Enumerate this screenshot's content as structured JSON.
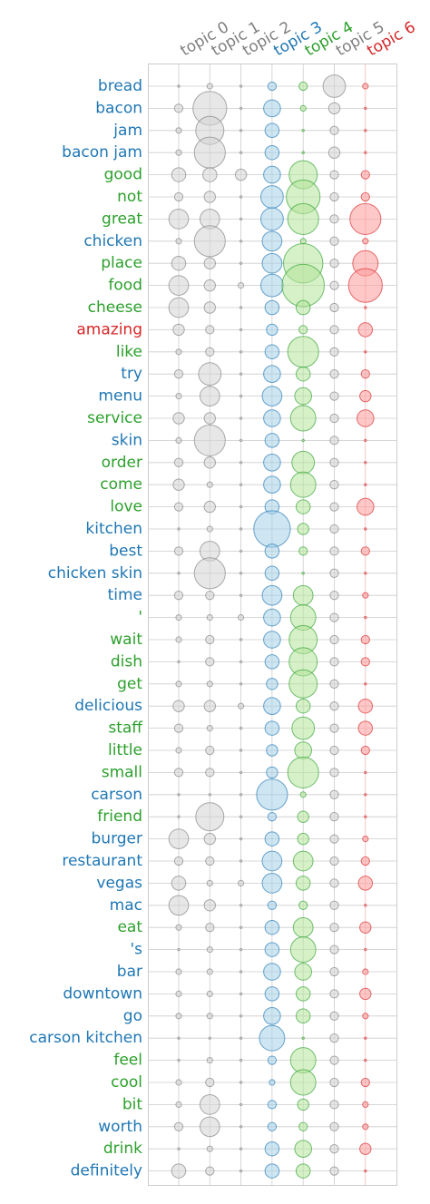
{
  "chart_data": {
    "type": "scatter",
    "title": "",
    "xlabel": "",
    "ylabel": "",
    "grid": true,
    "colors": {
      "gray": "#7f7f7f",
      "blue": "#1f77b4",
      "green": "#2ca02c",
      "red": "#d62728",
      "gray_fill": "#d3d3d3",
      "blue_fill": "#a6cfe8",
      "green_fill": "#b5e39a",
      "red_fill": "#ff9a9a",
      "grid": "#cccccc"
    },
    "topics": [
      {
        "label": "topic 0",
        "color": "gray"
      },
      {
        "label": "topic 1",
        "color": "gray"
      },
      {
        "label": "topic 2",
        "color": "gray"
      },
      {
        "label": "topic 3",
        "color": "blue"
      },
      {
        "label": "topic 4",
        "color": "green"
      },
      {
        "label": "topic 5",
        "color": "gray"
      },
      {
        "label": "topic 6",
        "color": "red"
      }
    ],
    "terms": [
      {
        "label": "bread",
        "color": "blue",
        "values": [
          1,
          2,
          1,
          3,
          3,
          8,
          2
        ]
      },
      {
        "label": "bacon",
        "color": "blue",
        "values": [
          3,
          12,
          1,
          6,
          2,
          4,
          1
        ]
      },
      {
        "label": "jam",
        "color": "blue",
        "values": [
          2,
          10,
          1,
          5,
          1,
          3,
          1
        ]
      },
      {
        "label": "bacon jam",
        "color": "blue",
        "values": [
          2,
          11,
          1,
          5,
          1,
          4,
          1
        ]
      },
      {
        "label": "good",
        "color": "green",
        "values": [
          5,
          5,
          4,
          6,
          10,
          3,
          3
        ]
      },
      {
        "label": "not",
        "color": "green",
        "values": [
          3,
          4,
          1,
          8,
          12,
          3,
          3
        ]
      },
      {
        "label": "great",
        "color": "green",
        "values": [
          7,
          7,
          1,
          8,
          11,
          3,
          11
        ]
      },
      {
        "label": "chicken",
        "color": "blue",
        "values": [
          2,
          11,
          1,
          7,
          2,
          3,
          2
        ]
      },
      {
        "label": "place",
        "color": "green",
        "values": [
          5,
          4,
          1,
          7,
          14,
          3,
          9
        ]
      },
      {
        "label": "food",
        "color": "green",
        "values": [
          7,
          4,
          2,
          8,
          15,
          3,
          12
        ]
      },
      {
        "label": "cheese",
        "color": "green",
        "values": [
          7,
          4,
          1,
          5,
          5,
          3,
          1
        ]
      },
      {
        "label": "amazing",
        "color": "red",
        "values": [
          4,
          3,
          1,
          4,
          3,
          3,
          5
        ]
      },
      {
        "label": "like",
        "color": "green",
        "values": [
          2,
          3,
          1,
          5,
          11,
          3,
          1
        ]
      },
      {
        "label": "try",
        "color": "blue",
        "values": [
          3,
          8,
          1,
          6,
          5,
          3,
          3
        ]
      },
      {
        "label": "menu",
        "color": "blue",
        "values": [
          2,
          7,
          1,
          7,
          6,
          3,
          4
        ]
      },
      {
        "label": "service",
        "color": "green",
        "values": [
          4,
          4,
          1,
          6,
          9,
          3,
          6
        ]
      },
      {
        "label": "skin",
        "color": "blue",
        "values": [
          2,
          11,
          1,
          5,
          1,
          3,
          1
        ]
      },
      {
        "label": "order",
        "color": "green",
        "values": [
          3,
          4,
          1,
          6,
          8,
          3,
          1
        ]
      },
      {
        "label": "come",
        "color": "green",
        "values": [
          4,
          2,
          1,
          6,
          9,
          3,
          1
        ]
      },
      {
        "label": "love",
        "color": "green",
        "values": [
          3,
          4,
          1,
          5,
          5,
          3,
          6
        ]
      },
      {
        "label": "kitchen",
        "color": "blue",
        "values": [
          1,
          2,
          1,
          13,
          4,
          3,
          1
        ]
      },
      {
        "label": "best",
        "color": "blue",
        "values": [
          3,
          7,
          1,
          5,
          3,
          3,
          3
        ]
      },
      {
        "label": "chicken skin",
        "color": "blue",
        "values": [
          1,
          11,
          1,
          5,
          1,
          3,
          1
        ]
      },
      {
        "label": "time",
        "color": "blue",
        "values": [
          3,
          3,
          1,
          7,
          7,
          3,
          2
        ]
      },
      {
        "label": "'",
        "color": "green",
        "values": [
          2,
          2,
          2,
          6,
          9,
          3,
          1
        ]
      },
      {
        "label": "wait",
        "color": "green",
        "values": [
          2,
          3,
          1,
          6,
          10,
          3,
          3
        ]
      },
      {
        "label": "dish",
        "color": "green",
        "values": [
          1,
          3,
          1,
          5,
          10,
          3,
          3
        ]
      },
      {
        "label": "get",
        "color": "green",
        "values": [
          2,
          2,
          1,
          4,
          10,
          3,
          1
        ]
      },
      {
        "label": "delicious",
        "color": "blue",
        "values": [
          4,
          4,
          2,
          6,
          5,
          3,
          5
        ]
      },
      {
        "label": "staff",
        "color": "green",
        "values": [
          3,
          2,
          1,
          5,
          8,
          3,
          5
        ]
      },
      {
        "label": "little",
        "color": "green",
        "values": [
          2,
          3,
          1,
          4,
          6,
          3,
          3
        ]
      },
      {
        "label": "small",
        "color": "green",
        "values": [
          3,
          3,
          1,
          4,
          11,
          3,
          1
        ]
      },
      {
        "label": "carson",
        "color": "blue",
        "values": [
          1,
          1,
          1,
          11,
          2,
          3,
          1
        ]
      },
      {
        "label": "friend",
        "color": "green",
        "values": [
          1,
          10,
          1,
          3,
          4,
          3,
          1
        ]
      },
      {
        "label": "burger",
        "color": "blue",
        "values": [
          7,
          4,
          1,
          5,
          4,
          3,
          2
        ]
      },
      {
        "label": "restaurant",
        "color": "blue",
        "values": [
          3,
          3,
          1,
          7,
          7,
          3,
          3
        ]
      },
      {
        "label": "vegas",
        "color": "blue",
        "values": [
          5,
          2,
          2,
          7,
          5,
          3,
          5
        ]
      },
      {
        "label": "mac",
        "color": "blue",
        "values": [
          7,
          4,
          1,
          3,
          3,
          3,
          1
        ]
      },
      {
        "label": "eat",
        "color": "green",
        "values": [
          2,
          3,
          1,
          5,
          7,
          3,
          4
        ]
      },
      {
        "label": "'s",
        "color": "blue",
        "values": [
          1,
          2,
          1,
          5,
          9,
          3,
          1
        ]
      },
      {
        "label": "bar",
        "color": "blue",
        "values": [
          2,
          2,
          1,
          6,
          6,
          3,
          2
        ]
      },
      {
        "label": "downtown",
        "color": "blue",
        "values": [
          2,
          2,
          1,
          5,
          5,
          3,
          4
        ]
      },
      {
        "label": "go",
        "color": "blue",
        "values": [
          2,
          2,
          1,
          6,
          5,
          3,
          2
        ]
      },
      {
        "label": "carson kitchen",
        "color": "blue",
        "values": [
          1,
          1,
          1,
          9,
          1,
          3,
          1
        ]
      },
      {
        "label": "feel",
        "color": "green",
        "values": [
          1,
          2,
          1,
          3,
          9,
          3,
          1
        ]
      },
      {
        "label": "cool",
        "color": "green",
        "values": [
          2,
          3,
          1,
          2,
          9,
          3,
          3
        ]
      },
      {
        "label": "bit",
        "color": "green",
        "values": [
          2,
          7,
          1,
          3,
          4,
          3,
          2
        ]
      },
      {
        "label": "worth",
        "color": "blue",
        "values": [
          3,
          7,
          1,
          3,
          3,
          3,
          2
        ]
      },
      {
        "label": "drink",
        "color": "green",
        "values": [
          1,
          2,
          1,
          5,
          6,
          3,
          4
        ]
      },
      {
        "label": "definitely",
        "color": "blue",
        "values": [
          5,
          3,
          1,
          5,
          5,
          3,
          1
        ]
      }
    ]
  }
}
